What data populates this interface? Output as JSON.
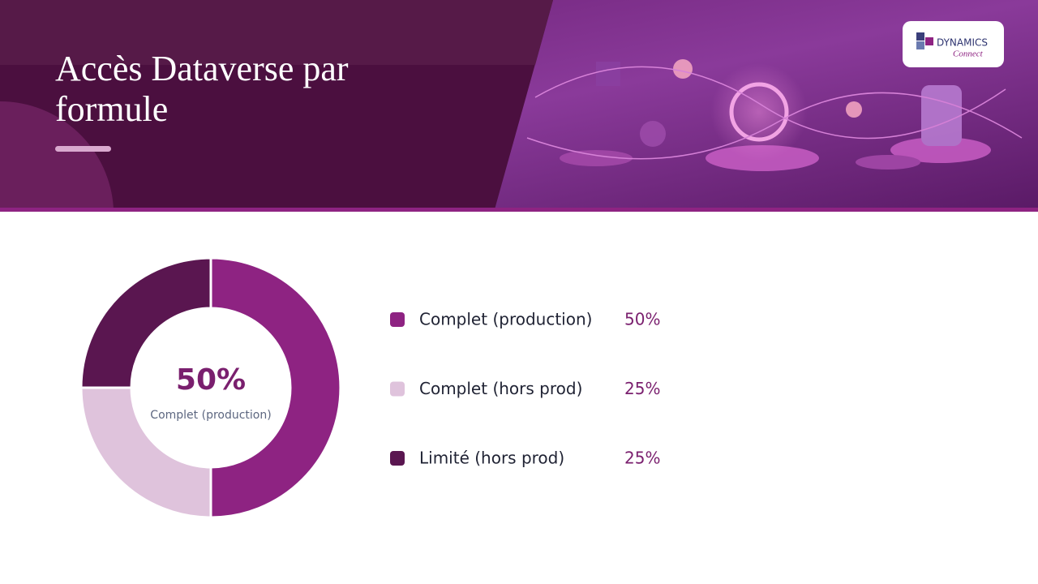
{
  "chart_data": {
    "type": "donut",
    "title": "Accès Dataverse par formule",
    "categories": [
      "Complet (production)",
      "Complet (hors prod)",
      "Limité (hors prod)"
    ],
    "values": [
      50,
      25,
      25
    ],
    "value_labels": [
      "50%",
      "25%",
      "25%"
    ],
    "colors": [
      "#8e2382",
      "#dfc3dc",
      "#5a1650"
    ]
  },
  "logo": {
    "name": "DYNAMICS",
    "tagline": "Connect"
  }
}
